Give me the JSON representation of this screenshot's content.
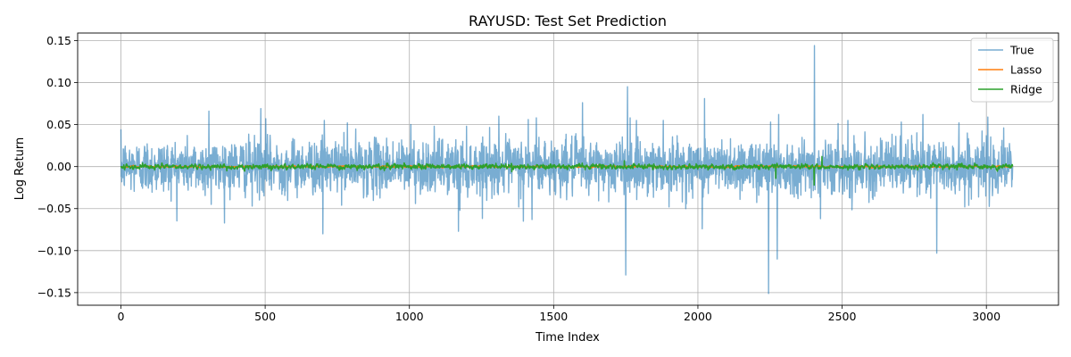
{
  "chart_data": {
    "type": "line",
    "title": "RAYUSD: Test Set Prediction",
    "xlabel": "Time Index",
    "ylabel": "Log Return",
    "xlim": [
      -150,
      3250
    ],
    "ylim": [
      -0.165,
      0.159
    ],
    "xticks": [
      0,
      500,
      1000,
      1500,
      2000,
      2500,
      3000
    ],
    "xtick_labels": [
      "0",
      "500",
      "1000",
      "1500",
      "2000",
      "2500",
      "3000"
    ],
    "yticks": [
      -0.15,
      -0.1,
      -0.05,
      0.0,
      0.05,
      0.1,
      0.15
    ],
    "ytick_labels": [
      "−0.15",
      "−0.10",
      "−0.05",
      "0.00",
      "0.05",
      "0.10",
      "0.15"
    ],
    "grid": true,
    "legend_position": "top-right",
    "n_points": 3092,
    "series": [
      {
        "name": "True",
        "color": "#1f77b4",
        "opacity": 0.6,
        "typical_amplitude": 0.016,
        "spikes": [
          {
            "x": 305,
            "y": 0.066
          },
          {
            "x": 313,
            "y": -0.045
          },
          {
            "x": 455,
            "y": -0.047
          },
          {
            "x": 485,
            "y": 0.069
          },
          {
            "x": 502,
            "y": 0.057
          },
          {
            "x": 700,
            "y": -0.08
          },
          {
            "x": 705,
            "y": 0.055
          },
          {
            "x": 785,
            "y": 0.052
          },
          {
            "x": 1005,
            "y": 0.05
          },
          {
            "x": 1170,
            "y": -0.077
          },
          {
            "x": 1175,
            "y": -0.052
          },
          {
            "x": 1185,
            "y": 0.03
          },
          {
            "x": 1310,
            "y": 0.06
          },
          {
            "x": 1395,
            "y": -0.065
          },
          {
            "x": 1412,
            "y": 0.056
          },
          {
            "x": 1425,
            "y": -0.063
          },
          {
            "x": 1440,
            "y": 0.058
          },
          {
            "x": 1600,
            "y": 0.076
          },
          {
            "x": 1750,
            "y": -0.129
          },
          {
            "x": 1756,
            "y": 0.095
          },
          {
            "x": 1765,
            "y": 0.058
          },
          {
            "x": 1880,
            "y": 0.055
          },
          {
            "x": 1900,
            "y": -0.048
          },
          {
            "x": 2015,
            "y": -0.074
          },
          {
            "x": 2023,
            "y": 0.081
          },
          {
            "x": 2245,
            "y": -0.151
          },
          {
            "x": 2252,
            "y": 0.053
          },
          {
            "x": 2275,
            "y": -0.11
          },
          {
            "x": 2280,
            "y": 0.062
          },
          {
            "x": 2404,
            "y": 0.144
          },
          {
            "x": 2425,
            "y": -0.062
          },
          {
            "x": 2520,
            "y": 0.055
          },
          {
            "x": 2705,
            "y": 0.053
          },
          {
            "x": 2780,
            "y": 0.062
          },
          {
            "x": 2828,
            "y": -0.103
          },
          {
            "x": 2905,
            "y": 0.052
          },
          {
            "x": 2925,
            "y": -0.048
          },
          {
            "x": 3005,
            "y": 0.059
          }
        ]
      },
      {
        "name": "Lasso",
        "color": "#ff7f0e",
        "opacity": 1,
        "typical_amplitude": 0.0015
      },
      {
        "name": "Ridge",
        "color": "#2ca02c",
        "opacity": 1,
        "typical_amplitude": 0.003,
        "spikes": [
          {
            "x": 2270,
            "y": -0.014
          },
          {
            "x": 2403,
            "y": -0.022
          },
          {
            "x": 2430,
            "y": 0.012
          },
          {
            "x": 1355,
            "y": -0.006
          },
          {
            "x": 1745,
            "y": 0.007
          }
        ]
      }
    ]
  }
}
